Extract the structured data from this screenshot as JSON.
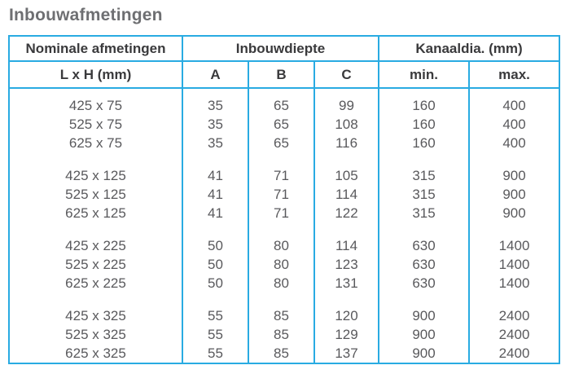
{
  "title": "Inbouwafmetingen",
  "colors": {
    "border": "#29ABE2",
    "header_text": "#3A3A3C",
    "data_text": "#59595C",
    "title_text": "#6E6F72",
    "background": "#FFFFFF"
  },
  "table": {
    "header": {
      "col_nominal": "Nominale afmetingen",
      "col_depth": "Inbouwdiepte",
      "col_duct": "Kanaaldia. (mm)",
      "sub_lxh": "L x H (mm)",
      "sub_a": "A",
      "sub_b": "B",
      "sub_c": "C",
      "sub_min": "min.",
      "sub_max": "max."
    },
    "column_keys": [
      "lxh",
      "a",
      "b",
      "c",
      "min",
      "max"
    ],
    "groups": [
      {
        "rows": [
          {
            "lxh": "425 x 75",
            "a": "35",
            "b": "65",
            "c": "99",
            "min": "160",
            "max": "400"
          },
          {
            "lxh": "525 x 75",
            "a": "35",
            "b": "65",
            "c": "108",
            "min": "160",
            "max": "400"
          },
          {
            "lxh": "625 x 75",
            "a": "35",
            "b": "65",
            "c": "116",
            "min": "160",
            "max": "400"
          }
        ]
      },
      {
        "rows": [
          {
            "lxh": "425 x 125",
            "a": "41",
            "b": "71",
            "c": "105",
            "min": "315",
            "max": "900"
          },
          {
            "lxh": "525 x 125",
            "a": "41",
            "b": "71",
            "c": "114",
            "min": "315",
            "max": "900"
          },
          {
            "lxh": "625 x 125",
            "a": "41",
            "b": "71",
            "c": "122",
            "min": "315",
            "max": "900"
          }
        ]
      },
      {
        "rows": [
          {
            "lxh": "425 x 225",
            "a": "50",
            "b": "80",
            "c": "114",
            "min": "630",
            "max": "1400"
          },
          {
            "lxh": "525 x 225",
            "a": "50",
            "b": "80",
            "c": "123",
            "min": "630",
            "max": "1400"
          },
          {
            "lxh": "625 x 225",
            "a": "50",
            "b": "80",
            "c": "131",
            "min": "630",
            "max": "1400"
          }
        ]
      },
      {
        "rows": [
          {
            "lxh": "425 x 325",
            "a": "55",
            "b": "85",
            "c": "120",
            "min": "900",
            "max": "2400"
          },
          {
            "lxh": "525 x 325",
            "a": "55",
            "b": "85",
            "c": "129",
            "min": "900",
            "max": "2400"
          },
          {
            "lxh": "625 x 325",
            "a": "55",
            "b": "85",
            "c": "137",
            "min": "900",
            "max": "2400"
          }
        ]
      }
    ]
  }
}
